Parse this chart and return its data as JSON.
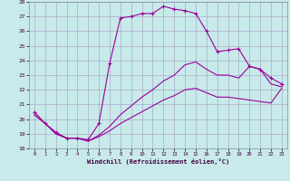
{
  "xlabel": "Windchill (Refroidissement éolien,°C)",
  "background_color": "#c8eaea",
  "line_color": "#990099",
  "grid_color": "#aaaacc",
  "xmin": -0.5,
  "xmax": 23.5,
  "ymin": 18,
  "ymax": 28,
  "series1_x": [
    0,
    1,
    2,
    3,
    4,
    5,
    6,
    7,
    8,
    9,
    10,
    11,
    12,
    13,
    14,
    15,
    16,
    17,
    18,
    19,
    20,
    21,
    22,
    23
  ],
  "series1_y": [
    20.5,
    19.7,
    19.1,
    18.7,
    18.7,
    18.6,
    19.7,
    23.8,
    26.9,
    27.0,
    27.2,
    27.2,
    27.7,
    27.5,
    27.4,
    27.2,
    26.0,
    24.6,
    24.7,
    24.8,
    23.6,
    23.4,
    22.8,
    22.4
  ],
  "series2_x": [
    0,
    1,
    2,
    3,
    4,
    5,
    6,
    7,
    8,
    9,
    10,
    11,
    12,
    13,
    14,
    15,
    16,
    17,
    18,
    19,
    20,
    21,
    22,
    23
  ],
  "series2_y": [
    20.3,
    19.7,
    19.0,
    18.7,
    18.7,
    18.5,
    18.9,
    19.5,
    20.3,
    20.9,
    21.5,
    22.0,
    22.6,
    23.0,
    23.7,
    23.9,
    23.4,
    23.0,
    23.0,
    22.8,
    23.6,
    23.4,
    22.4,
    22.2
  ],
  "series3_x": [
    0,
    1,
    2,
    3,
    4,
    5,
    6,
    7,
    8,
    9,
    10,
    11,
    12,
    13,
    14,
    15,
    16,
    17,
    18,
    19,
    20,
    21,
    22,
    23
  ],
  "series3_y": [
    20.3,
    19.7,
    19.0,
    18.7,
    18.7,
    18.5,
    18.8,
    19.2,
    19.7,
    20.1,
    20.5,
    20.9,
    21.3,
    21.6,
    22.0,
    22.1,
    21.8,
    21.5,
    21.5,
    21.4,
    21.3,
    21.2,
    21.1,
    22.1
  ],
  "yticks": [
    18,
    19,
    20,
    21,
    22,
    23,
    24,
    25,
    26,
    27,
    28
  ],
  "xticks": [
    0,
    1,
    2,
    3,
    4,
    5,
    6,
    7,
    8,
    9,
    10,
    11,
    12,
    13,
    14,
    15,
    16,
    17,
    18,
    19,
    20,
    21,
    22,
    23
  ]
}
